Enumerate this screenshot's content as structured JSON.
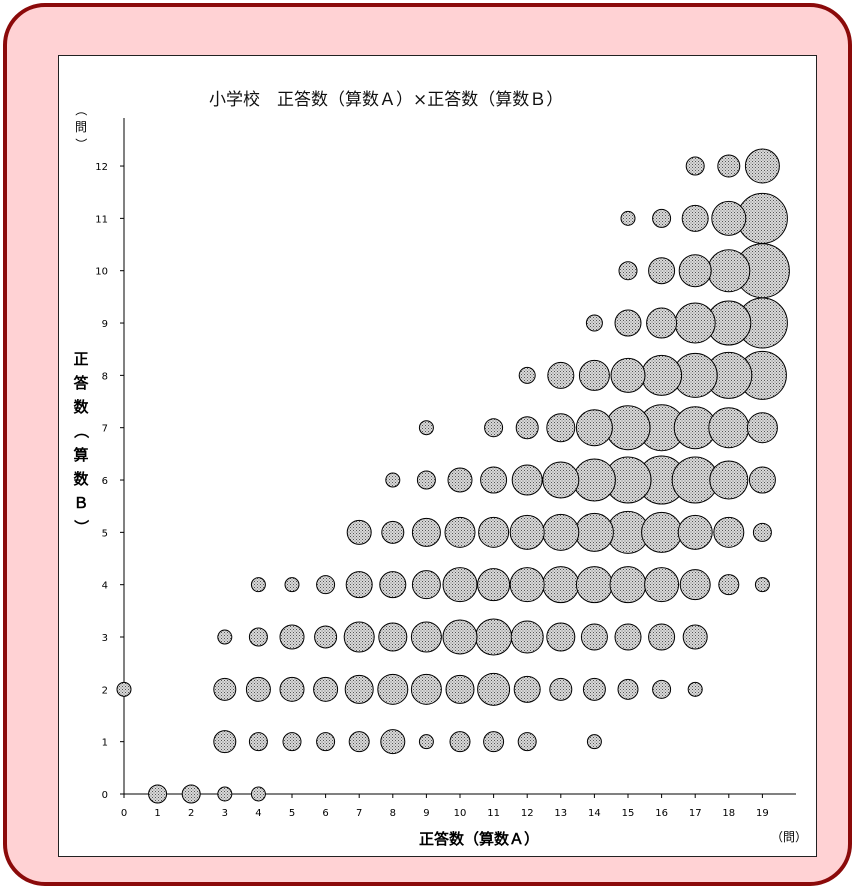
{
  "colors": {
    "frame_border": "#8b0a0a",
    "frame_fill": "#ffd2d4",
    "bubble_fill": "dotted-gray",
    "bubble_stroke": "#000000"
  },
  "chart_data": {
    "type": "scatter",
    "title": "小学校　正答数（算数Ａ）×正答数（算数Ｂ）",
    "xlabel": "正答数（算数Ａ）",
    "xunit": "（問）",
    "ylabel": "正答数（算数Ｂ）",
    "ylabel_chars": [
      "正",
      "答",
      "数",
      "（",
      "算",
      "数",
      "Ｂ",
      "）"
    ],
    "yunit_chars": [
      "（",
      "問",
      "）"
    ],
    "xlim": [
      0,
      19
    ],
    "ylim": [
      0,
      12
    ],
    "xticks": [
      "0",
      "1",
      "2",
      "3",
      "4",
      "5",
      "6",
      "7",
      "8",
      "9",
      "10",
      "11",
      "12",
      "13",
      "14",
      "15",
      "16",
      "17",
      "18",
      "19"
    ],
    "yticks": [
      "0",
      "1",
      "2",
      "3",
      "4",
      "5",
      "6",
      "7",
      "8",
      "9",
      "10",
      "11",
      "12"
    ],
    "grid": false,
    "size_encoding": "relative count of students (bubble size)",
    "points": [
      {
        "x": 0,
        "y": 2,
        "s": 2
      },
      {
        "x": 1,
        "y": 0,
        "s": 3
      },
      {
        "x": 2,
        "y": 0,
        "s": 3
      },
      {
        "x": 3,
        "y": 0,
        "s": 2
      },
      {
        "x": 4,
        "y": 0,
        "s": 2
      },
      {
        "x": 3,
        "y": 1,
        "s": 4
      },
      {
        "x": 4,
        "y": 1,
        "s": 3
      },
      {
        "x": 5,
        "y": 1,
        "s": 3
      },
      {
        "x": 6,
        "y": 1,
        "s": 3
      },
      {
        "x": 7,
        "y": 1,
        "s": 3.5
      },
      {
        "x": 8,
        "y": 1,
        "s": 4.5
      },
      {
        "x": 9,
        "y": 1,
        "s": 2
      },
      {
        "x": 10,
        "y": 1,
        "s": 3.5
      },
      {
        "x": 11,
        "y": 1,
        "s": 3.5
      },
      {
        "x": 12,
        "y": 1,
        "s": 3
      },
      {
        "x": 14,
        "y": 1,
        "s": 2
      },
      {
        "x": 3,
        "y": 2,
        "s": 4
      },
      {
        "x": 4,
        "y": 2,
        "s": 4.5
      },
      {
        "x": 5,
        "y": 2,
        "s": 4.5
      },
      {
        "x": 6,
        "y": 2,
        "s": 4.5
      },
      {
        "x": 7,
        "y": 2,
        "s": 5.5
      },
      {
        "x": 8,
        "y": 2,
        "s": 6
      },
      {
        "x": 9,
        "y": 2,
        "s": 6
      },
      {
        "x": 10,
        "y": 2,
        "s": 5.5
      },
      {
        "x": 11,
        "y": 2,
        "s": 6.5
      },
      {
        "x": 12,
        "y": 2,
        "s": 5
      },
      {
        "x": 13,
        "y": 2,
        "s": 4
      },
      {
        "x": 14,
        "y": 2,
        "s": 4
      },
      {
        "x": 15,
        "y": 2,
        "s": 3.5
      },
      {
        "x": 16,
        "y": 2,
        "s": 3
      },
      {
        "x": 17,
        "y": 2,
        "s": 2
      },
      {
        "x": 3,
        "y": 3,
        "s": 2
      },
      {
        "x": 4,
        "y": 3,
        "s": 3
      },
      {
        "x": 5,
        "y": 3,
        "s": 4.5
      },
      {
        "x": 6,
        "y": 3,
        "s": 4
      },
      {
        "x": 7,
        "y": 3,
        "s": 6
      },
      {
        "x": 8,
        "y": 3,
        "s": 5.5
      },
      {
        "x": 9,
        "y": 3,
        "s": 6
      },
      {
        "x": 10,
        "y": 3,
        "s": 7
      },
      {
        "x": 11,
        "y": 3,
        "s": 7.5
      },
      {
        "x": 12,
        "y": 3,
        "s": 6.5
      },
      {
        "x": 13,
        "y": 3,
        "s": 5.5
      },
      {
        "x": 14,
        "y": 3,
        "s": 5
      },
      {
        "x": 15,
        "y": 3,
        "s": 5
      },
      {
        "x": 16,
        "y": 3,
        "s": 5
      },
      {
        "x": 17,
        "y": 3,
        "s": 4.5
      },
      {
        "x": 4,
        "y": 4,
        "s": 2
      },
      {
        "x": 5,
        "y": 4,
        "s": 2
      },
      {
        "x": 6,
        "y": 4,
        "s": 3
      },
      {
        "x": 7,
        "y": 4,
        "s": 5
      },
      {
        "x": 8,
        "y": 4,
        "s": 5
      },
      {
        "x": 9,
        "y": 4,
        "s": 5.5
      },
      {
        "x": 10,
        "y": 4,
        "s": 7
      },
      {
        "x": 11,
        "y": 4,
        "s": 6.5
      },
      {
        "x": 12,
        "y": 4,
        "s": 7
      },
      {
        "x": 13,
        "y": 4,
        "s": 7.5
      },
      {
        "x": 14,
        "y": 4,
        "s": 7.5
      },
      {
        "x": 15,
        "y": 4,
        "s": 7.5
      },
      {
        "x": 16,
        "y": 4,
        "s": 7
      },
      {
        "x": 17,
        "y": 4,
        "s": 6
      },
      {
        "x": 18,
        "y": 4,
        "s": 3.5
      },
      {
        "x": 19,
        "y": 4,
        "s": 2
      },
      {
        "x": 7,
        "y": 5,
        "s": 4.5
      },
      {
        "x": 8,
        "y": 5,
        "s": 4
      },
      {
        "x": 9,
        "y": 5,
        "s": 5.5
      },
      {
        "x": 10,
        "y": 5,
        "s": 6
      },
      {
        "x": 11,
        "y": 5,
        "s": 6
      },
      {
        "x": 12,
        "y": 5,
        "s": 7
      },
      {
        "x": 13,
        "y": 5,
        "s": 7.5
      },
      {
        "x": 14,
        "y": 5,
        "s": 8
      },
      {
        "x": 15,
        "y": 5,
        "s": 9
      },
      {
        "x": 16,
        "y": 5,
        "s": 8.5
      },
      {
        "x": 17,
        "y": 5,
        "s": 7
      },
      {
        "x": 18,
        "y": 5,
        "s": 6
      },
      {
        "x": 19,
        "y": 5,
        "s": 3
      },
      {
        "x": 8,
        "y": 6,
        "s": 2
      },
      {
        "x": 9,
        "y": 6,
        "s": 3
      },
      {
        "x": 10,
        "y": 6,
        "s": 4.5
      },
      {
        "x": 11,
        "y": 6,
        "s": 5
      },
      {
        "x": 12,
        "y": 6,
        "s": 6
      },
      {
        "x": 13,
        "y": 6,
        "s": 7.5
      },
      {
        "x": 14,
        "y": 6,
        "s": 9
      },
      {
        "x": 15,
        "y": 6,
        "s": 10
      },
      {
        "x": 16,
        "y": 6,
        "s": 10.5
      },
      {
        "x": 17,
        "y": 6,
        "s": 10
      },
      {
        "x": 18,
        "y": 6,
        "s": 8
      },
      {
        "x": 19,
        "y": 6,
        "s": 5
      },
      {
        "x": 9,
        "y": 7,
        "s": 2
      },
      {
        "x": 11,
        "y": 7,
        "s": 3
      },
      {
        "x": 12,
        "y": 7,
        "s": 4
      },
      {
        "x": 13,
        "y": 7,
        "s": 5.5
      },
      {
        "x": 14,
        "y": 7,
        "s": 7.5
      },
      {
        "x": 15,
        "y": 7,
        "s": 9.5
      },
      {
        "x": 16,
        "y": 7,
        "s": 10
      },
      {
        "x": 17,
        "y": 7,
        "s": 9
      },
      {
        "x": 18,
        "y": 7,
        "s": 8.5
      },
      {
        "x": 19,
        "y": 7,
        "s": 6
      },
      {
        "x": 12,
        "y": 8,
        "s": 2.5
      },
      {
        "x": 13,
        "y": 8,
        "s": 5
      },
      {
        "x": 14,
        "y": 8,
        "s": 6
      },
      {
        "x": 15,
        "y": 8,
        "s": 7
      },
      {
        "x": 16,
        "y": 8,
        "s": 8.5
      },
      {
        "x": 17,
        "y": 8,
        "s": 9.5
      },
      {
        "x": 18,
        "y": 8,
        "s": 10
      },
      {
        "x": 19,
        "y": 8,
        "s": 10.5
      },
      {
        "x": 14,
        "y": 9,
        "s": 2.5
      },
      {
        "x": 15,
        "y": 9,
        "s": 5
      },
      {
        "x": 16,
        "y": 9,
        "s": 6
      },
      {
        "x": 17,
        "y": 9,
        "s": 8.5
      },
      {
        "x": 18,
        "y": 9,
        "s": 9.5
      },
      {
        "x": 19,
        "y": 9,
        "s": 11
      },
      {
        "x": 15,
        "y": 10,
        "s": 3
      },
      {
        "x": 16,
        "y": 10,
        "s": 5
      },
      {
        "x": 17,
        "y": 10,
        "s": 6.5
      },
      {
        "x": 18,
        "y": 10,
        "s": 9
      },
      {
        "x": 19,
        "y": 10,
        "s": 12
      },
      {
        "x": 15,
        "y": 11,
        "s": 2
      },
      {
        "x": 16,
        "y": 11,
        "s": 3
      },
      {
        "x": 17,
        "y": 11,
        "s": 5
      },
      {
        "x": 18,
        "y": 11,
        "s": 7
      },
      {
        "x": 19,
        "y": 11,
        "s": 11
      },
      {
        "x": 17,
        "y": 12,
        "s": 3
      },
      {
        "x": 18,
        "y": 12,
        "s": 4
      },
      {
        "x": 19,
        "y": 12,
        "s": 7
      }
    ]
  }
}
